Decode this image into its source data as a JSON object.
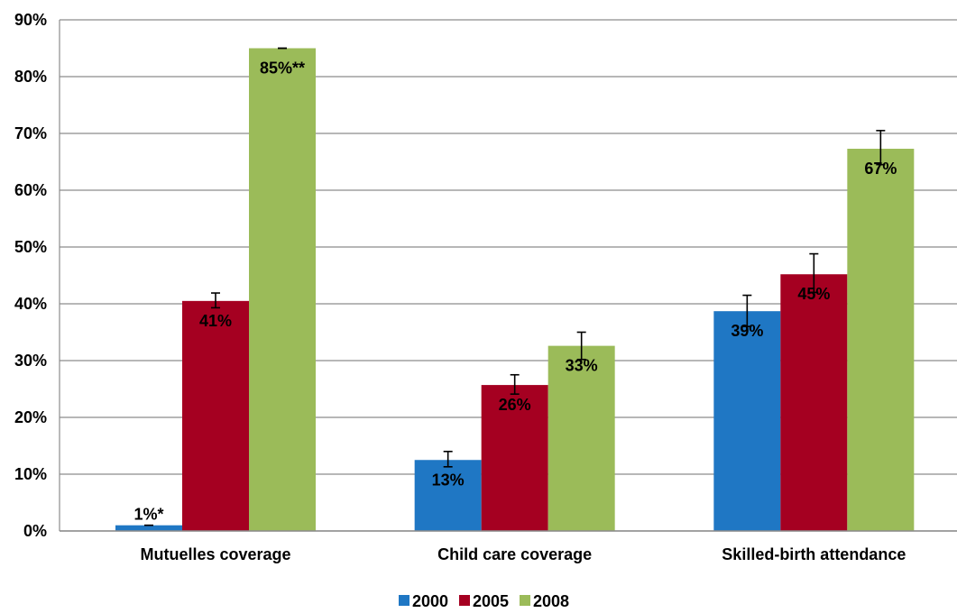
{
  "chart_data": {
    "type": "bar",
    "title": "",
    "xlabel": "",
    "ylabel": "",
    "categories": [
      "Mutuelles coverage",
      "Child care coverage",
      "Skilled-birth attendance"
    ],
    "series": [
      {
        "name": "2000",
        "color": "#1f77c4",
        "values": [
          1,
          12.5,
          38.7
        ],
        "labels": [
          "1%*",
          "13%",
          "39%"
        ],
        "error": [
          [
            1,
            1
          ],
          [
            11.3,
            14.0
          ],
          [
            36.0,
            41.5
          ]
        ]
      },
      {
        "name": "2005",
        "color": "#a50021",
        "values": [
          40.5,
          25.7,
          45.2
        ],
        "labels": [
          "41%",
          "26%",
          "45%"
        ],
        "error": [
          [
            39.3,
            41.9
          ],
          [
            24.1,
            27.5
          ],
          [
            42.0,
            48.8
          ]
        ]
      },
      {
        "name": "2008",
        "color": "#9bbb59",
        "values": [
          85,
          32.6,
          67.3
        ],
        "labels": [
          "85%**",
          "33%",
          "67%"
        ],
        "error": [
          [
            85,
            85
          ],
          [
            30.2,
            35.0
          ],
          [
            64.5,
            70.5
          ]
        ]
      }
    ],
    "ylim": [
      0,
      90
    ],
    "yticks": [
      "0%",
      "10%",
      "20%",
      "30%",
      "40%",
      "50%",
      "60%",
      "70%",
      "80%",
      "90%"
    ],
    "grid": true,
    "legend": "bottom"
  }
}
